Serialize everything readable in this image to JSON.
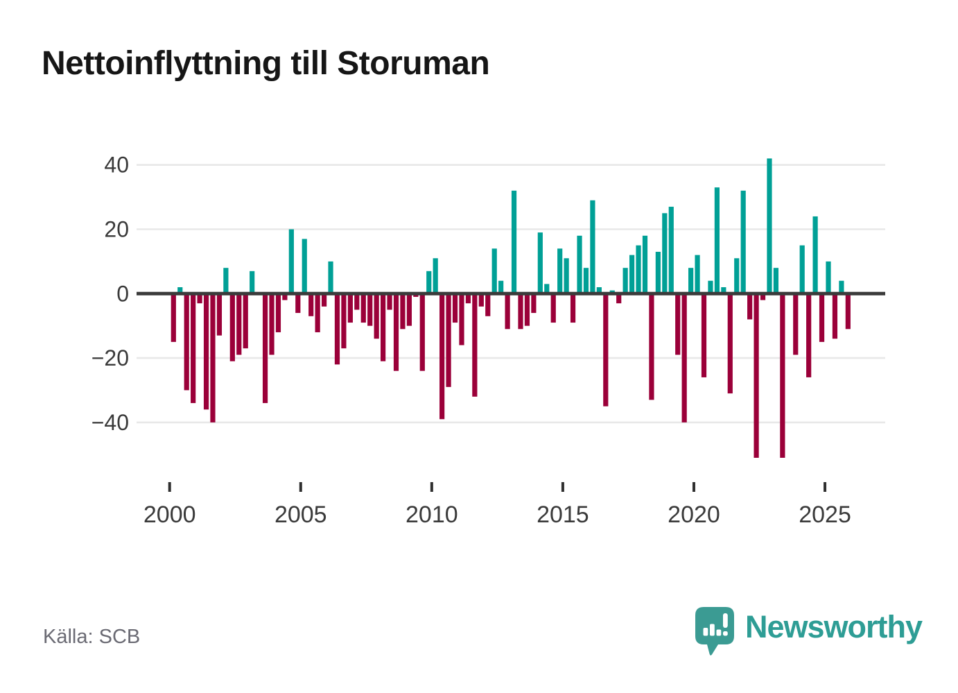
{
  "title": "Nettoinflyttning till Storuman",
  "footer": {
    "source_label": "Källa: SCB",
    "brand_name": "Newsworthy"
  },
  "colors": {
    "positive": "#00A096",
    "negative": "#9B0039",
    "grid": "#E8E8E8",
    "zero_line": "#3B3B3B",
    "axis_text": "#3A3A3A",
    "title_text": "#161616",
    "source_text": "#6A6A73",
    "brand": "#2E9D95"
  },
  "chart_data": {
    "type": "bar",
    "title": "Nettoinflyttning till Storuman",
    "frequency": "quarterly",
    "start": "2000 Q1",
    "end": "2025 Q4",
    "grid": true,
    "legend": false,
    "x_tick_labels": [
      "2000",
      "2005",
      "2010",
      "2015",
      "2020",
      "2025"
    ],
    "y_ticks": [
      40,
      20,
      0,
      -20,
      -40
    ],
    "ylim": [
      -55,
      46
    ],
    "quarters": [
      "2000 Q1",
      "2000 Q2",
      "2000 Q3",
      "2000 Q4",
      "2001 Q1",
      "2001 Q2",
      "2001 Q3",
      "2001 Q4",
      "2002 Q1",
      "2002 Q2",
      "2002 Q3",
      "2002 Q4",
      "2003 Q1",
      "2003 Q2",
      "2003 Q3",
      "2003 Q4",
      "2004 Q1",
      "2004 Q2",
      "2004 Q3",
      "2004 Q4",
      "2005 Q1",
      "2005 Q2",
      "2005 Q3",
      "2005 Q4",
      "2006 Q1",
      "2006 Q2",
      "2006 Q3",
      "2006 Q4",
      "2007 Q1",
      "2007 Q2",
      "2007 Q3",
      "2007 Q4",
      "2008 Q1",
      "2008 Q2",
      "2008 Q3",
      "2008 Q4",
      "2009 Q1",
      "2009 Q2",
      "2009 Q3",
      "2009 Q4",
      "2010 Q1",
      "2010 Q2",
      "2010 Q3",
      "2010 Q4",
      "2011 Q1",
      "2011 Q2",
      "2011 Q3",
      "2011 Q4",
      "2012 Q1",
      "2012 Q2",
      "2012 Q3",
      "2012 Q4",
      "2013 Q1",
      "2013 Q2",
      "2013 Q3",
      "2013 Q4",
      "2014 Q1",
      "2014 Q2",
      "2014 Q3",
      "2014 Q4",
      "2015 Q1",
      "2015 Q2",
      "2015 Q3",
      "2015 Q4",
      "2016 Q1",
      "2016 Q2",
      "2016 Q3",
      "2016 Q4",
      "2017 Q1",
      "2017 Q2",
      "2017 Q3",
      "2017 Q4",
      "2018 Q1",
      "2018 Q2",
      "2018 Q3",
      "2018 Q4",
      "2019 Q1",
      "2019 Q2",
      "2019 Q3",
      "2019 Q4",
      "2020 Q1",
      "2020 Q2",
      "2020 Q3",
      "2020 Q4",
      "2021 Q1",
      "2021 Q2",
      "2021 Q3",
      "2021 Q4",
      "2022 Q1",
      "2022 Q2",
      "2022 Q3",
      "2022 Q4",
      "2023 Q1",
      "2023 Q2",
      "2023 Q3",
      "2023 Q4",
      "2024 Q1",
      "2024 Q2",
      "2024 Q3",
      "2024 Q4",
      "2025 Q1",
      "2025 Q2",
      "2025 Q3",
      "2025 Q4"
    ],
    "values": [
      -15,
      2,
      -30,
      -34,
      -3,
      -36,
      -40,
      -13,
      8,
      -21,
      -19,
      -17,
      7,
      0,
      -34,
      -19,
      -12,
      -2,
      20,
      -6,
      17,
      -7,
      -12,
      -4,
      10,
      -22,
      -17,
      -9,
      -5,
      -9,
      -10,
      -14,
      -21,
      -5,
      -24,
      -11,
      -10,
      -1,
      -24,
      7,
      11,
      -39,
      -29,
      -9,
      -16,
      -3,
      -32,
      -4,
      -7,
      14,
      4,
      -11,
      32,
      -11,
      -10,
      -6,
      19,
      3,
      -9,
      14,
      11,
      -9,
      18,
      8,
      29,
      2,
      -35,
      1,
      -3,
      8,
      12,
      15,
      18,
      -33,
      13,
      25,
      27,
      -19,
      -40,
      8,
      12,
      -26,
      4,
      33,
      2,
      -31,
      11,
      32,
      -8,
      -51,
      -2,
      42,
      8,
      -51,
      0,
      -19,
      15,
      -26,
      24,
      -15,
      10,
      -14,
      4,
      -11
    ]
  }
}
